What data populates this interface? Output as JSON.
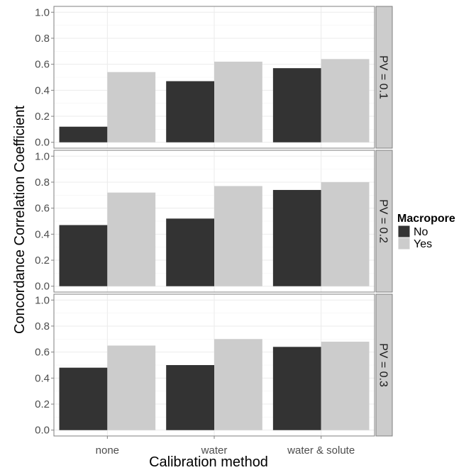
{
  "chart_data": {
    "type": "bar",
    "facet_label": "PV",
    "xlabel": "Calibration method",
    "ylabel": "Concordance Correlation Coefficient",
    "categories": [
      "none",
      "water",
      "water & solute"
    ],
    "ylim": [
      0,
      1.0
    ],
    "yticks": [
      "0.0",
      "0.2",
      "0.4",
      "0.6",
      "0.8",
      "1.0"
    ],
    "legend": {
      "title": "Macropore",
      "position": "right",
      "entries": [
        {
          "label": "No",
          "color": "#333333"
        },
        {
          "label": "Yes",
          "color": "#cccccc"
        }
      ]
    },
    "grid": true,
    "panels": [
      {
        "strip": "PV = 0.1",
        "series": [
          {
            "name": "No",
            "values": [
              0.12,
              0.47,
              0.57
            ]
          },
          {
            "name": "Yes",
            "values": [
              0.54,
              0.62,
              0.64
            ]
          }
        ]
      },
      {
        "strip": "PV = 0.2",
        "series": [
          {
            "name": "No",
            "values": [
              0.47,
              0.52,
              0.74
            ]
          },
          {
            "name": "Yes",
            "values": [
              0.72,
              0.77,
              0.8
            ]
          }
        ]
      },
      {
        "strip": "PV = 0.3",
        "series": [
          {
            "name": "No",
            "values": [
              0.48,
              0.5,
              0.64
            ]
          },
          {
            "name": "Yes",
            "values": [
              0.65,
              0.7,
              0.68
            ]
          }
        ]
      }
    ]
  }
}
